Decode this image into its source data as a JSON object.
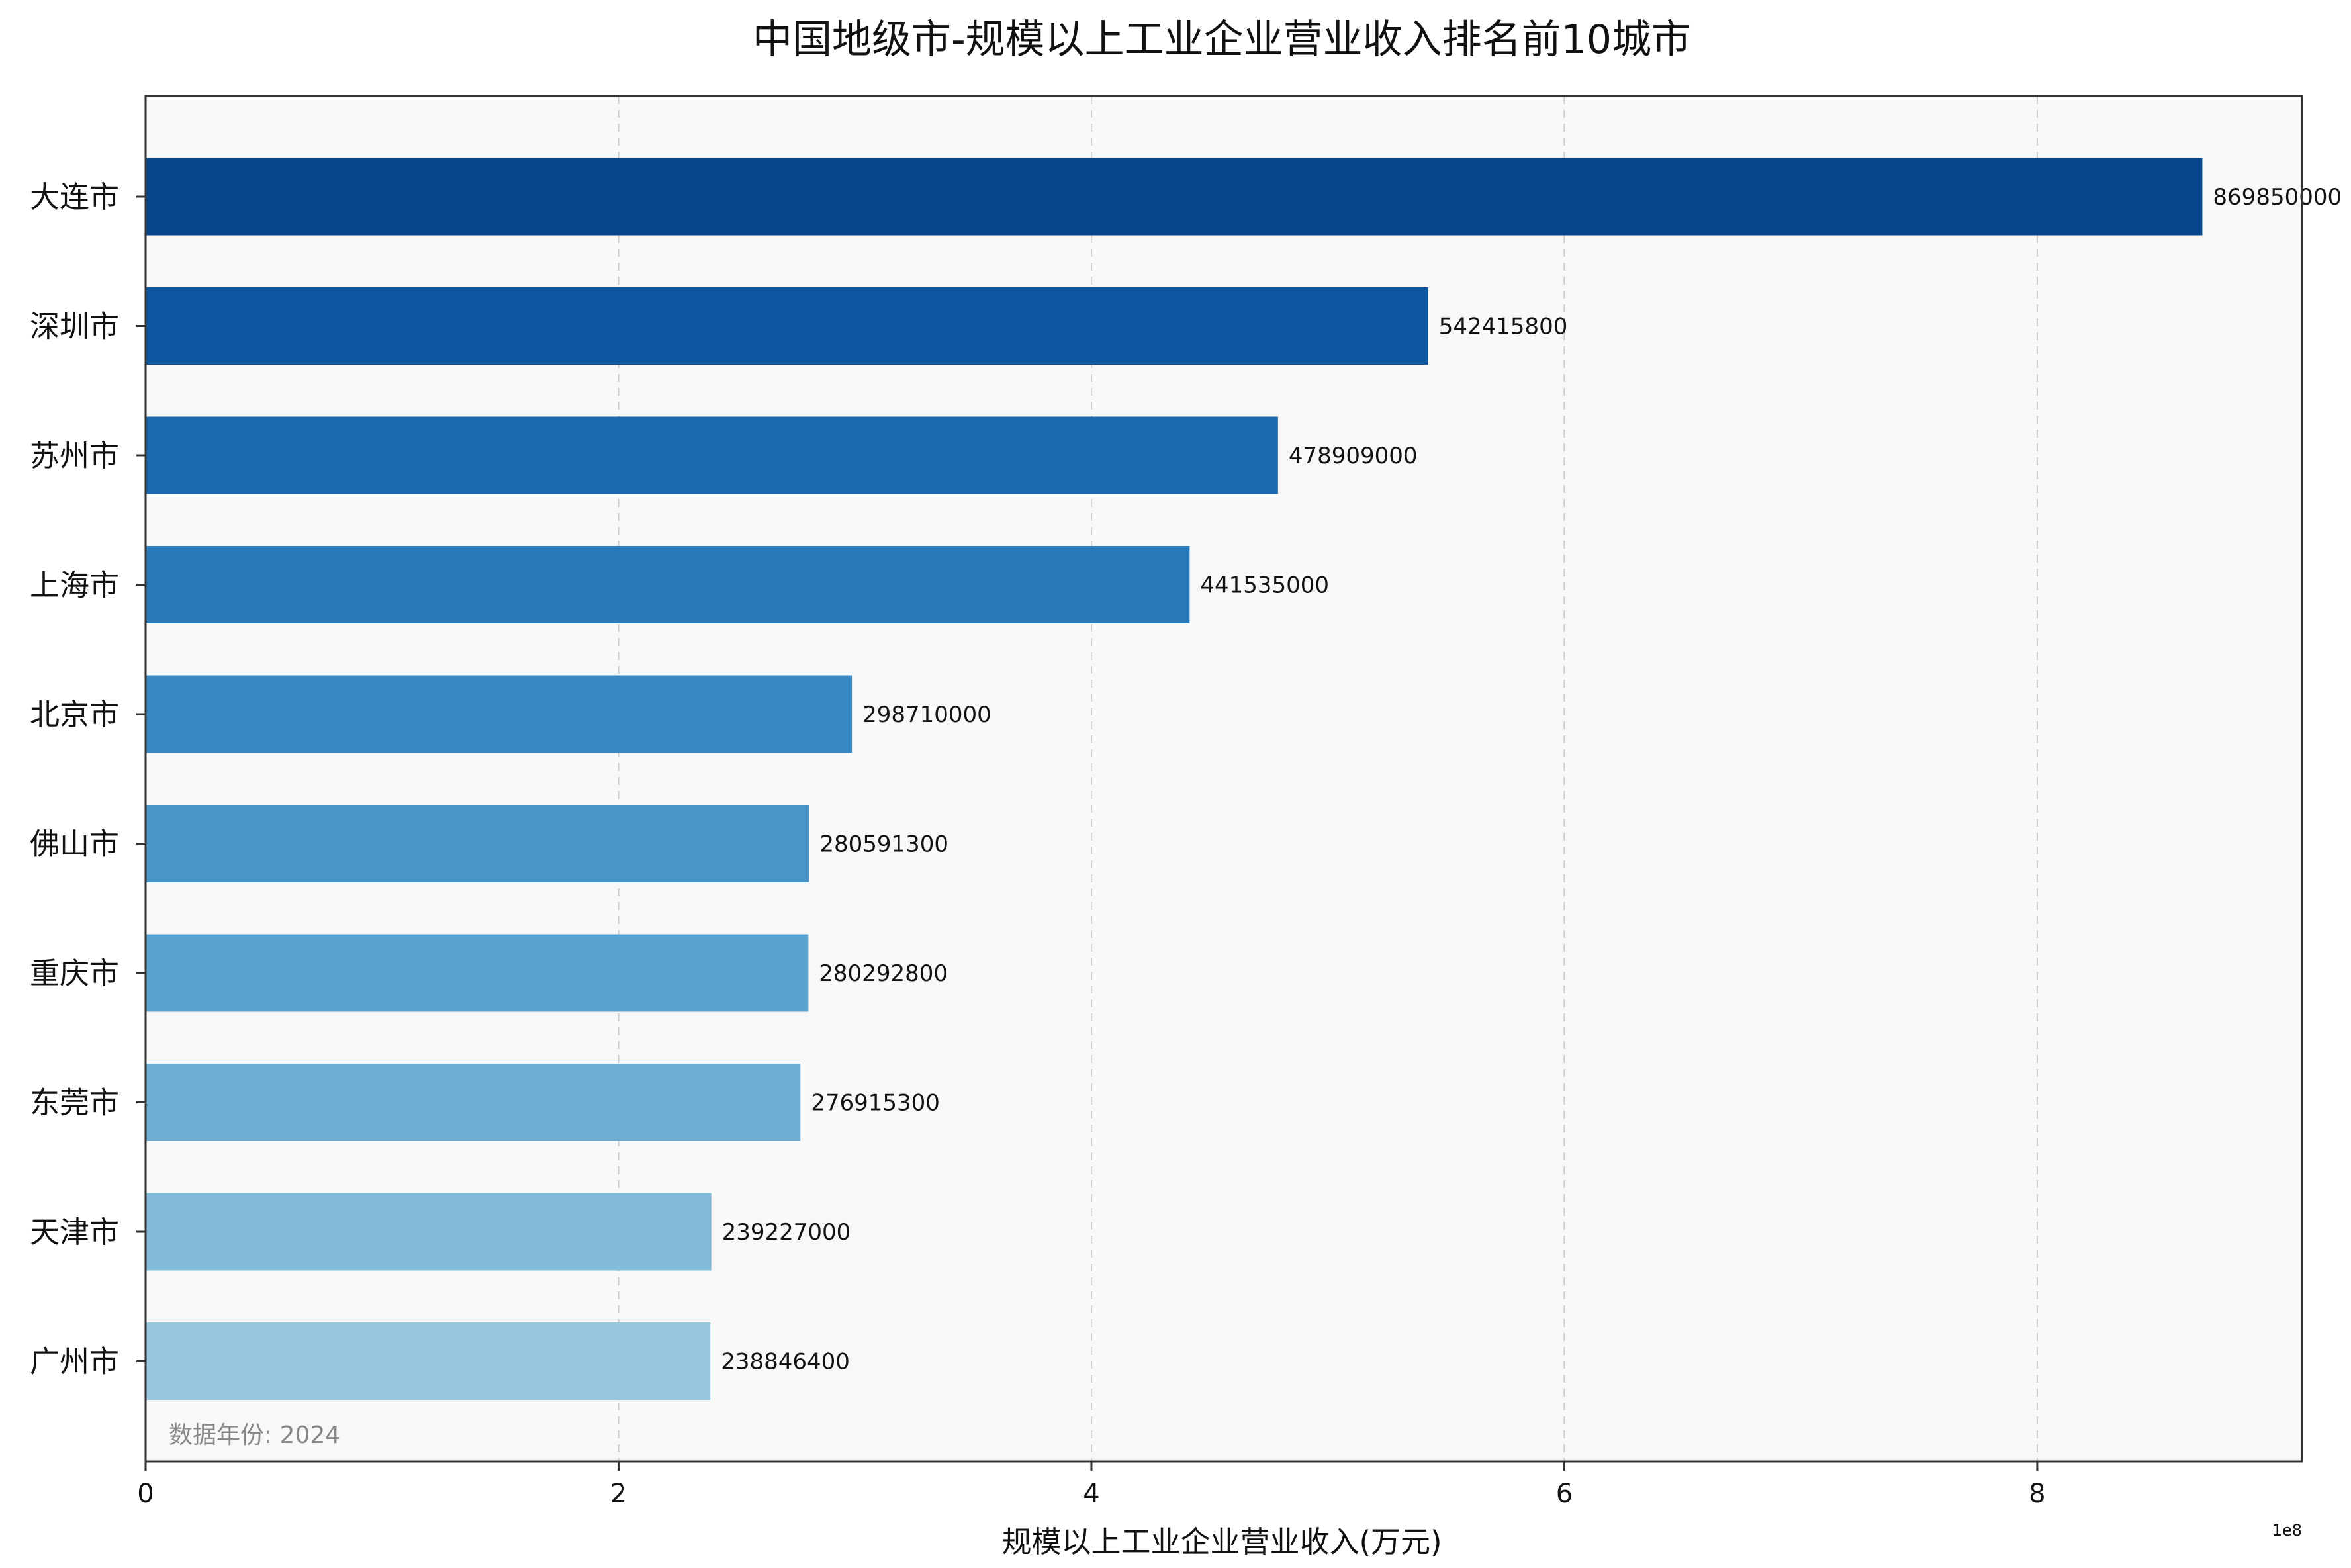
{
  "chart_data": {
    "type": "bar",
    "orientation": "horizontal",
    "title": "中国地级市-规模以上工业企业营业收入排名前10城市",
    "xlabel": "规模以上工业企业营业收入(万元)",
    "ylabel": "",
    "xlim": [
      0,
      912000000
    ],
    "x_ticks": [
      0,
      200000000,
      400000000,
      600000000,
      800000000
    ],
    "x_tick_labels": [
      "0",
      "2",
      "4",
      "6",
      "8"
    ],
    "x_offset_label": "1e8",
    "grid": "x dashed",
    "categories": [
      "大连市",
      "深圳市",
      "苏州市",
      "上海市",
      "北京市",
      "佛山市",
      "重庆市",
      "东莞市",
      "天津市",
      "广州市"
    ],
    "values": [
      869850000,
      542415800,
      478909000,
      441535000,
      298710000,
      280591300,
      280292800,
      276915300,
      239227000,
      238846400
    ],
    "value_labels": [
      "869850000",
      "542415800",
      "478909000",
      "441535000",
      "298710000",
      "280591300",
      "280292800",
      "276915300",
      "239227000",
      "238846400"
    ],
    "colors": [
      "#08468d",
      "#0d57a1",
      "#1a69af",
      "#2a79b9",
      "#3a88c1",
      "#4a95c8",
      "#59a2cf",
      "#6cadd6",
      "#82bada",
      "#97c6df"
    ],
    "annotation": "数据年份: 2024",
    "plot_background": "#f8f8f8"
  }
}
